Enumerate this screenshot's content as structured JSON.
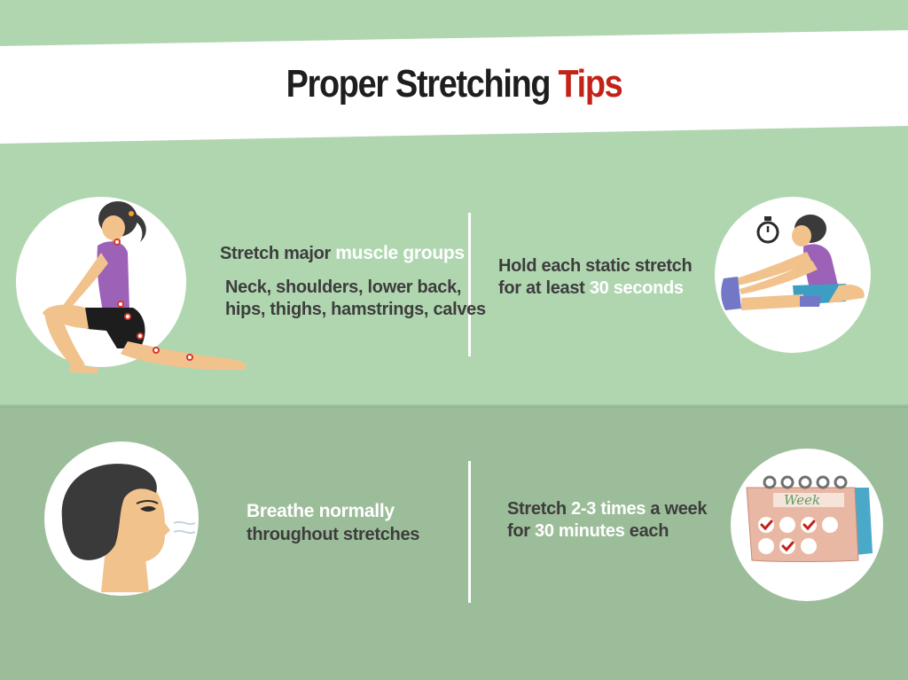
{
  "title": {
    "main": "Proper Stretching",
    "accent": "Tips"
  },
  "colors": {
    "green_light": "#b0d6b0",
    "green_dark": "#9cbd99",
    "accent_red": "#c22217",
    "arrow_orange": "#e2582f"
  },
  "tips": [
    {
      "heading_pre": "Stretch major",
      "heading_hl": "muscle groups",
      "detail_line1": "Neck, shoulders, lower back,",
      "detail_line2": "hips, thighs, hamstrings, calves",
      "icon": "lunge-stretch-illustration"
    },
    {
      "line1": "Hold each static stretch",
      "line2_pre": "for at least",
      "line2_hl": "30 seconds",
      "icon": "seated-stretch-stopwatch-illustration"
    },
    {
      "line1": "Breathe normally",
      "line2": "throughout stretches",
      "icon": "breathing-face-illustration"
    },
    {
      "line1_pre": "Stretch",
      "line1_hl": "2-3 times",
      "line1_post": "a week",
      "line2_pre": "for",
      "line2_hl": "30 minutes",
      "line2_post": "each",
      "icon": "weekly-calendar-illustration"
    }
  ],
  "calendar_label": "Week"
}
